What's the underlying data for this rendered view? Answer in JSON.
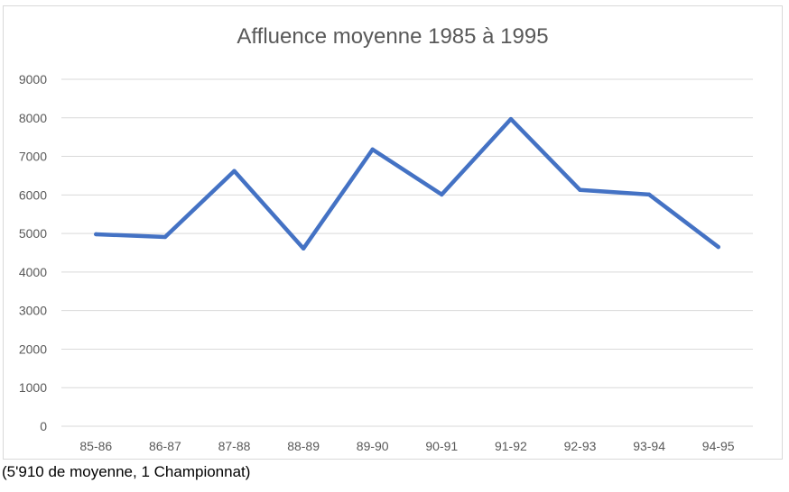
{
  "chart_data": {
    "type": "line",
    "title": "Affluence moyenne 1985 à 1995",
    "categories": [
      "85-86",
      "86-87",
      "87-88",
      "88-89",
      "89-90",
      "90-91",
      "91-92",
      "92-93",
      "93-94",
      "94-95"
    ],
    "series": [
      {
        "values": [
          4980,
          4910,
          6620,
          4610,
          7180,
          6010,
          7970,
          6130,
          6010,
          4650
        ],
        "color": "#4472c4"
      }
    ],
    "xlabel": "",
    "ylabel": "",
    "ylim": [
      0,
      9000
    ],
    "yticks": [
      "0",
      "1000",
      "2000",
      "3000",
      "4000",
      "5000",
      "6000",
      "7000",
      "8000",
      "9000"
    ],
    "grid": true,
    "legend": "none",
    "colors": {
      "grid": "#d9d9d9",
      "text": "#595959",
      "line": "#4472c4"
    }
  },
  "caption": "(5'910 de moyenne, 1 Championnat)"
}
